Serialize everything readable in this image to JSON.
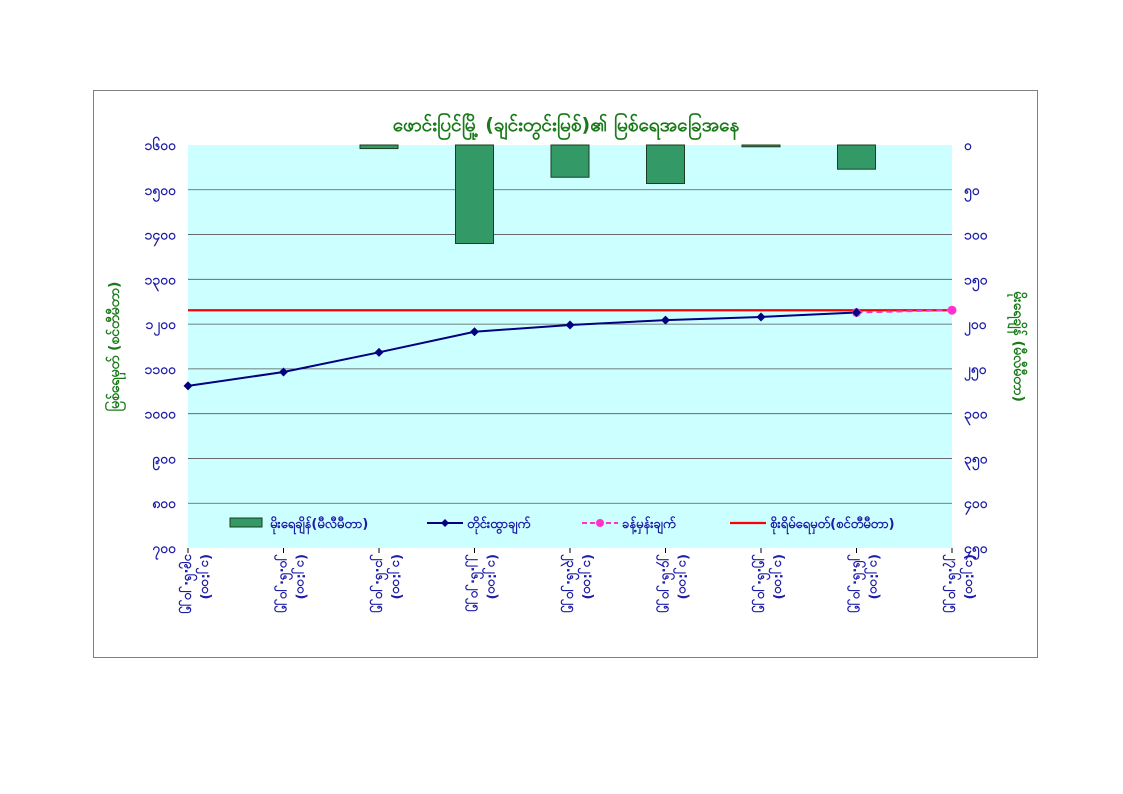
{
  "colors": {
    "plot_bg": "#ccffff",
    "bar": "#339966",
    "bar_border": "#1e3d1e",
    "gauge_line": "#000080",
    "forecast": "#ff33cc",
    "danger_line": "#ff0000",
    "grid": "#555555",
    "title": "#1a7a1a",
    "ticks": "#1c1ca8"
  },
  "chart_data": {
    "type": "bar+line",
    "title": "ဖောင်းပြင်မြို့ (ချင်းတွင်းမြစ်)၏ မြစ်ရေအခြေအနေ",
    "ylabel_left": "မြစ်ရေမှတ် (စင်တီမီတာ)",
    "ylabel_right": "မိုးရေချိန် (မီလီမီတာ)",
    "left_axis": {
      "min": 700,
      "max": 1600,
      "step": 100,
      "tick_labels": [
        "၇၀၀",
        "၈၀၀",
        "၉၀၀",
        "၁၀၀၀",
        "၁၁၀၀",
        "၁၂၀၀",
        "၁၃၀၀",
        "၁၄၀၀",
        "၁၅၀၀",
        "၁၆၀၀"
      ]
    },
    "right_axis": {
      "min": 0,
      "max": 450,
      "step": 50,
      "reversed": true,
      "tick_labels": [
        "၀",
        "၅၀",
        "၁၀၀",
        "၁၅၀",
        "၂၀၀",
        "၂၅၀",
        "၃၀၀",
        "၃၅၀",
        "၄၀၀",
        "၄၅၀"
      ]
    },
    "categories": [
      [
        "၁၉.၆.၂၀၂၅",
        "(၁၂:၀၀)"
      ],
      [
        "၂၀.၆.၂၀၂၅",
        "(၁၂:၀၀)"
      ],
      [
        "၂၁.၆.၂၀၂၅",
        "(၁၂:၀၀)"
      ],
      [
        "၂၂.၆.၂၀၂၅",
        "(၁၂:၀၀)"
      ],
      [
        "၂၃.၆.၂၀၂၅",
        "(၁၂:၀၀)"
      ],
      [
        "၂၄.၆.၂၀၂၅",
        "(၁၂:၀၀)"
      ],
      [
        "၂၅.၆.၂၀၂၅",
        "(၁၂:၀၀)"
      ],
      [
        "၂၆.၆.၂၀၂၅",
        "(၁၂:၀၀)"
      ],
      [
        "၂၇.၆.၂၀၂၅",
        "(၁၂:၀၀)"
      ]
    ],
    "series": [
      {
        "name": "မိုးရေချိန်(မီလီမီတာ)",
        "type": "bar",
        "axis": "right",
        "values": [
          null,
          null,
          4,
          110,
          36,
          43,
          2,
          27,
          null
        ]
      },
      {
        "name": "တိုင်းထွာချက်",
        "type": "line",
        "axis": "left",
        "values": [
          1062,
          1093,
          1137,
          1183,
          1198,
          1209,
          1216,
          1226,
          null
        ]
      },
      {
        "name": "ခန့်မှန်းချက်",
        "type": "dashed-line",
        "axis": "left",
        "values": [
          null,
          null,
          null,
          null,
          null,
          null,
          null,
          1226,
          1231
        ]
      },
      {
        "name": "စိုးရိမ်ရေမှတ်(စင်တီမီတာ)",
        "type": "hline",
        "axis": "left",
        "values": [
          1231,
          1231,
          1231,
          1231,
          1231,
          1231,
          1231,
          1231,
          1231
        ]
      }
    ],
    "grid": true,
    "legend_placement": "inside-bottom"
  }
}
